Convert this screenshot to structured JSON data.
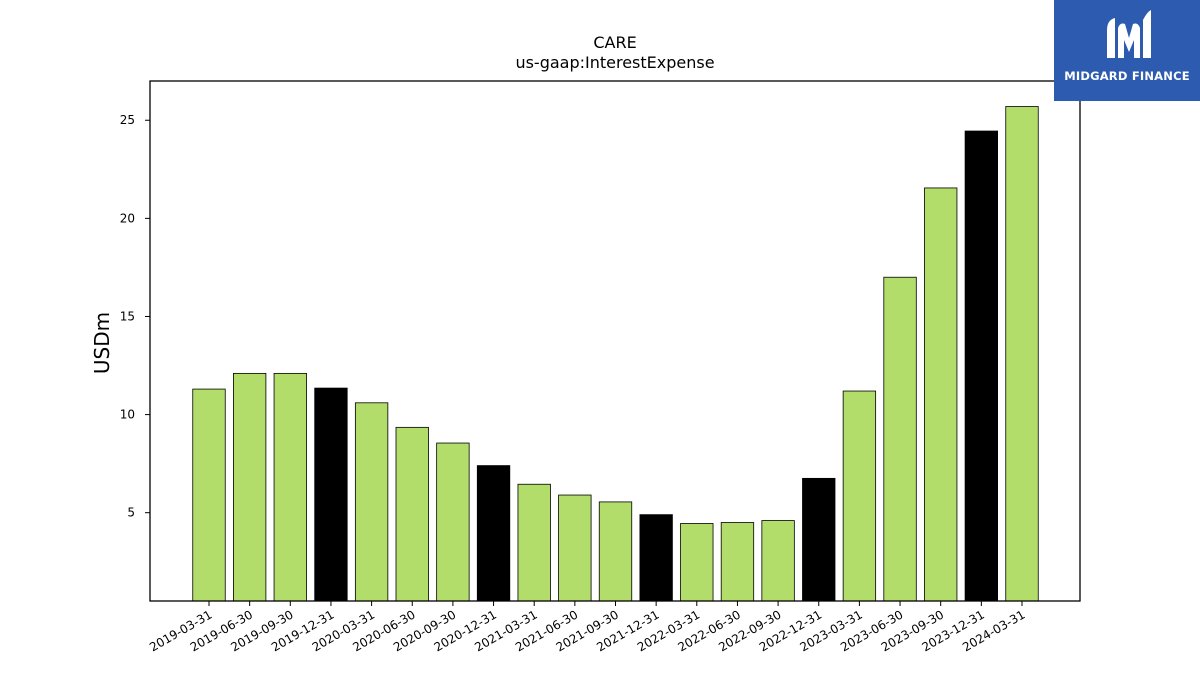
{
  "chart_data": {
    "type": "bar",
    "title": "CARE",
    "subtitle": "us-gaap:InterestExpense",
    "xlabel": "",
    "ylabel": "USDm",
    "ylim": [
      0.5,
      27
    ],
    "yticks": [
      5,
      10,
      15,
      20,
      25
    ],
    "grid": false,
    "categories": [
      "2019-03-31",
      "2019-06-30",
      "2019-09-30",
      "2019-12-31",
      "2020-03-31",
      "2020-06-30",
      "2020-09-30",
      "2020-12-31",
      "2021-03-31",
      "2021-06-30",
      "2021-09-30",
      "2021-12-31",
      "2022-03-31",
      "2022-06-30",
      "2022-09-30",
      "2022-12-31",
      "2023-03-31",
      "2023-06-30",
      "2023-09-30",
      "2023-12-31",
      "2024-03-31"
    ],
    "values": [
      11.3,
      12.1,
      12.1,
      11.35,
      10.6,
      9.35,
      8.55,
      7.4,
      6.45,
      5.9,
      5.55,
      4.9,
      4.45,
      4.5,
      4.6,
      6.75,
      11.2,
      17.0,
      21.55,
      24.45,
      25.7
    ],
    "bar_colors": [
      "#b3dd6b",
      "#b3dd6b",
      "#b3dd6b",
      "#000000",
      "#b3dd6b",
      "#b3dd6b",
      "#b3dd6b",
      "#000000",
      "#b3dd6b",
      "#b3dd6b",
      "#b3dd6b",
      "#000000",
      "#b3dd6b",
      "#b3dd6b",
      "#b3dd6b",
      "#000000",
      "#b3dd6b",
      "#b3dd6b",
      "#b3dd6b",
      "#000000",
      "#b3dd6b"
    ]
  },
  "logo": {
    "text": "MIDGARD FINANCE",
    "icon": "midgard-finance-logo-icon",
    "background": "#2d5bb0"
  }
}
